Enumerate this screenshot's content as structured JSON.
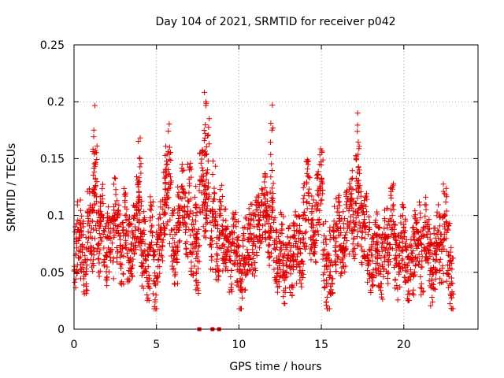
{
  "chart_data": {
    "type": "scatter",
    "title": "Day 104 of 2021, SRMTID for receiver p042",
    "xlabel": "GPS time / hours",
    "ylabel": "SRMTID / TECUs",
    "xlim": [
      0,
      24.5
    ],
    "ylim": [
      0,
      0.25
    ],
    "x_ticks": [
      0,
      5,
      10,
      15,
      20
    ],
    "x_tick_labels": [
      "0",
      "5",
      "10",
      "15",
      "20"
    ],
    "y_ticks": [
      0,
      0.05,
      0.1,
      0.15,
      0.2,
      0.25
    ],
    "y_tick_labels": [
      "0",
      "0.05",
      "0.1",
      "0.15",
      "0.2",
      "0.25"
    ],
    "grid": true,
    "marker": "plus",
    "color": "#e00000",
    "series": [
      {
        "name": "SRMTID",
        "description": "approx. 2700 points between 0 and 23 h, mostly 0.03-0.12 TECU, read from the figure",
        "x": [
          0.1,
          0.3,
          0.5,
          0.7,
          0.9,
          1.1,
          1.2,
          1.3,
          1.5,
          1.7,
          1.9,
          2.1,
          2.3,
          2.5,
          2.7,
          2.9,
          3.1,
          3.3,
          3.5,
          3.7,
          3.9,
          4.0,
          4.1,
          4.3,
          4.5,
          4.7,
          4.9,
          5.1,
          5.3,
          5.5,
          5.6,
          5.8,
          6.0,
          6.2,
          6.4,
          6.6,
          6.8,
          7.0,
          7.2,
          7.4,
          7.5,
          7.7,
          7.9,
          8.0,
          8.1,
          8.3,
          8.5,
          8.7,
          8.9,
          9.1,
          9.3,
          9.5,
          9.7,
          9.9,
          10.1,
          10.3,
          10.5,
          10.7,
          10.9,
          11.1,
          11.3,
          11.5,
          11.7,
          11.9,
          12.0,
          12.2,
          12.4,
          12.6,
          12.8,
          13.0,
          13.2,
          13.4,
          13.6,
          13.8,
          14.0,
          14.2,
          14.4,
          14.6,
          14.8,
          15.0,
          15.2,
          15.4,
          15.6,
          15.8,
          16.0,
          16.2,
          16.4,
          16.6,
          16.8,
          17.0,
          17.2,
          17.3,
          17.5,
          17.7,
          17.9,
          18.1,
          18.3,
          18.5,
          18.7,
          18.9,
          19.1,
          19.3,
          19.5,
          19.7,
          19.9,
          20.1,
          20.3,
          20.5,
          20.7,
          20.9,
          21.1,
          21.3,
          21.5,
          21.7,
          21.9,
          22.1,
          22.3,
          22.5,
          22.7,
          22.9
        ],
        "y": [
          0.065,
          0.085,
          0.07,
          0.06,
          0.095,
          0.08,
          0.175,
          0.145,
          0.075,
          0.1,
          0.065,
          0.08,
          0.07,
          0.11,
          0.085,
          0.065,
          0.1,
          0.07,
          0.075,
          0.09,
          0.105,
          0.15,
          0.065,
          0.075,
          0.055,
          0.09,
          0.04,
          0.07,
          0.085,
          0.11,
          0.14,
          0.16,
          0.08,
          0.065,
          0.1,
          0.12,
          0.09,
          0.14,
          0.075,
          0.1,
          0.06,
          0.13,
          0.11,
          0.2,
          0.17,
          0.08,
          0.12,
          0.065,
          0.1,
          0.08,
          0.07,
          0.06,
          0.075,
          0.065,
          0.04,
          0.06,
          0.07,
          0.08,
          0.075,
          0.09,
          0.1,
          0.11,
          0.095,
          0.08,
          0.175,
          0.07,
          0.06,
          0.075,
          0.05,
          0.065,
          0.055,
          0.08,
          0.07,
          0.06,
          0.1,
          0.12,
          0.09,
          0.085,
          0.11,
          0.13,
          0.065,
          0.04,
          0.06,
          0.08,
          0.09,
          0.07,
          0.08,
          0.095,
          0.11,
          0.09,
          0.19,
          0.14,
          0.085,
          0.09,
          0.07,
          0.06,
          0.075,
          0.065,
          0.055,
          0.08,
          0.07,
          0.1,
          0.065,
          0.055,
          0.08,
          0.07,
          0.045,
          0.06,
          0.075,
          0.085,
          0.06,
          0.09,
          0.07,
          0.05,
          0.06,
          0.08,
          0.07,
          0.1,
          0.065,
          0.045
        ]
      }
    ],
    "flagged_points": {
      "description": "square markers on the zero line",
      "x": [
        7.6,
        8.4,
        8.8
      ],
      "y": [
        0,
        0,
        0
      ]
    }
  }
}
